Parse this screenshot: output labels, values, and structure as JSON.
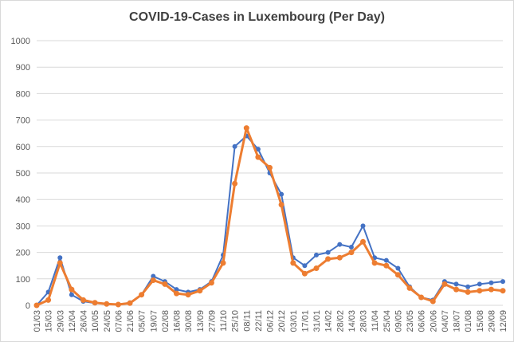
{
  "chart_data": {
    "type": "line",
    "title": "COVID-19-Cases in Luxembourg (Per Day)",
    "xlabel": "",
    "ylabel": "",
    "ylim": [
      0,
      1000
    ],
    "yticks": [
      0,
      100,
      200,
      300,
      400,
      500,
      600,
      700,
      800,
      900,
      1000
    ],
    "grid": "horizontal",
    "legend": "none",
    "colors": {
      "daily": "#4472c4",
      "smoothed": "#ed7d31",
      "grid": "#d9d9d9",
      "text": "#595959"
    },
    "x_tick_labels": [
      "01/03",
      "15/03",
      "29/03",
      "12/04",
      "26/04",
      "10/05",
      "24/05",
      "07/06",
      "21/06",
      "05/07",
      "19/07",
      "02/08",
      "16/08",
      "30/08",
      "13/09",
      "27/09",
      "11/10",
      "25/10",
      "08/11",
      "22/11",
      "06/12",
      "20/12",
      "03/01",
      "17/01",
      "31/01",
      "14/02",
      "28/02",
      "14/03",
      "28/03",
      "11/04",
      "25/04",
      "09/05",
      "23/05",
      "06/06",
      "20/06",
      "04/07",
      "18/07",
      "01/08",
      "15/08",
      "29/08",
      "12/09"
    ],
    "series": [
      {
        "role": "daily",
        "x": [
          "01/03",
          "15/03",
          "29/03",
          "12/04",
          "26/04",
          "10/05",
          "24/05",
          "07/06",
          "21/06",
          "05/07",
          "19/07",
          "02/08",
          "16/08",
          "30/08",
          "13/09",
          "27/09",
          "11/10",
          "25/10",
          "08/11",
          "22/11",
          "06/12",
          "20/12",
          "03/01",
          "17/01",
          "31/01",
          "14/02",
          "28/02",
          "14/03",
          "28/03",
          "11/04",
          "25/04",
          "09/05",
          "23/05",
          "06/06",
          "20/06",
          "04/07",
          "18/07",
          "01/08",
          "15/08",
          "29/08",
          "12/09"
        ],
        "values": [
          0,
          50,
          180,
          40,
          15,
          8,
          5,
          3,
          10,
          40,
          110,
          90,
          60,
          50,
          60,
          90,
          190,
          600,
          640,
          590,
          500,
          420,
          180,
          150,
          190,
          200,
          230,
          220,
          300,
          180,
          170,
          140,
          70,
          30,
          20,
          90,
          80,
          70,
          80,
          85,
          90
        ]
      },
      {
        "role": "smoothed",
        "x": [
          "01/03",
          "15/03",
          "29/03",
          "12/04",
          "26/04",
          "10/05",
          "24/05",
          "07/06",
          "21/06",
          "05/07",
          "19/07",
          "02/08",
          "16/08",
          "30/08",
          "13/09",
          "27/09",
          "11/10",
          "25/10",
          "08/11",
          "22/11",
          "06/12",
          "20/12",
          "03/01",
          "17/01",
          "31/01",
          "14/02",
          "28/02",
          "14/03",
          "28/03",
          "11/04",
          "25/04",
          "09/05",
          "23/05",
          "06/06",
          "20/06",
          "04/07",
          "18/07",
          "01/08",
          "15/08",
          "29/08",
          "12/09"
        ],
        "values": [
          0,
          20,
          160,
          60,
          20,
          10,
          5,
          3,
          8,
          40,
          95,
          80,
          45,
          40,
          55,
          85,
          160,
          460,
          670,
          560,
          520,
          380,
          160,
          120,
          140,
          175,
          180,
          200,
          240,
          160,
          150,
          115,
          65,
          30,
          15,
          80,
          60,
          50,
          55,
          60,
          55
        ]
      }
    ]
  }
}
